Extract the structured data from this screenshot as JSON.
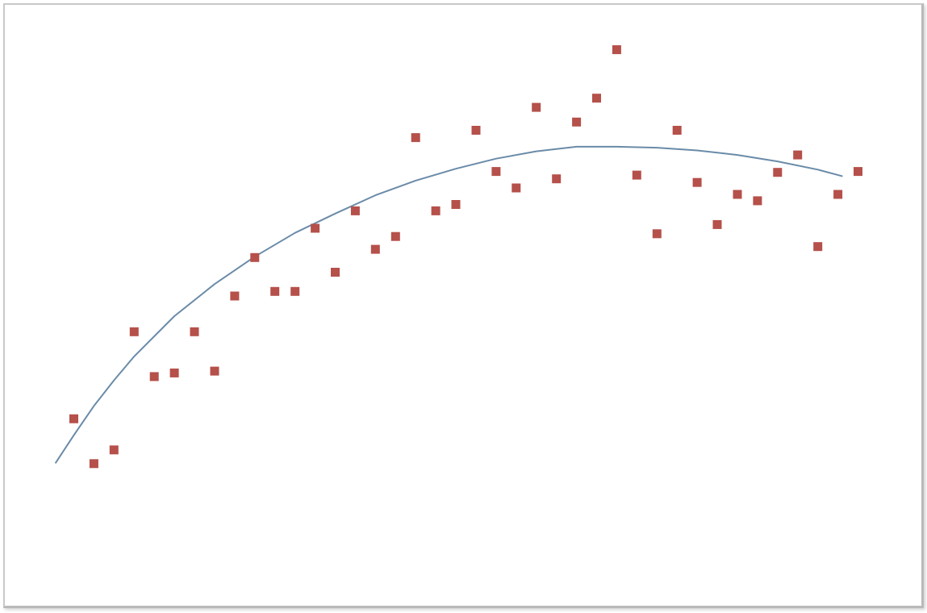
{
  "chart_data": {
    "type": "scatter",
    "title": "",
    "xlabel": "",
    "ylabel": "",
    "xlim": [
      0,
      40
    ],
    "ylim": [
      0,
      620
    ],
    "grid": false,
    "axes_visible": false,
    "series": [
      {
        "kind": "points",
        "marker": "square",
        "color": "#b5504a",
        "x": [
          1,
          2,
          3,
          4,
          5,
          6,
          7,
          8,
          9,
          10,
          11,
          12,
          13,
          14,
          15,
          16,
          17,
          18,
          19,
          20,
          21,
          22,
          23,
          24,
          25,
          26,
          27,
          28,
          29,
          30,
          31,
          32,
          33,
          34,
          35,
          36,
          37,
          38,
          39,
          40
        ],
        "y": [
          176,
          127,
          142,
          271,
          222,
          226,
          271,
          228,
          310,
          352,
          315,
          315,
          384,
          336,
          403,
          361,
          375,
          483,
          403,
          410,
          491,
          446,
          428,
          516,
          438,
          500,
          526,
          579,
          442,
          378,
          491,
          434,
          388,
          421,
          414,
          445,
          464,
          364,
          421,
          446
        ]
      },
      {
        "kind": "fit-line",
        "color": "#6a8ba8",
        "x": [
          0.1,
          1,
          2,
          3,
          4,
          6,
          8,
          10,
          12,
          14,
          16,
          18,
          20,
          22,
          24,
          26,
          28,
          30,
          32,
          34,
          36,
          38,
          39.2
        ],
        "y": [
          128,
          158,
          190,
          218,
          244,
          288,
          323,
          353,
          379,
          400,
          420,
          436,
          449,
          460,
          468,
          473,
          473,
          472,
          469,
          464,
          457,
          448,
          441
        ]
      }
    ],
    "colors": {
      "points": "#b5504a",
      "line": "#6a8ba8",
      "frame": "#c9c9c9"
    }
  }
}
